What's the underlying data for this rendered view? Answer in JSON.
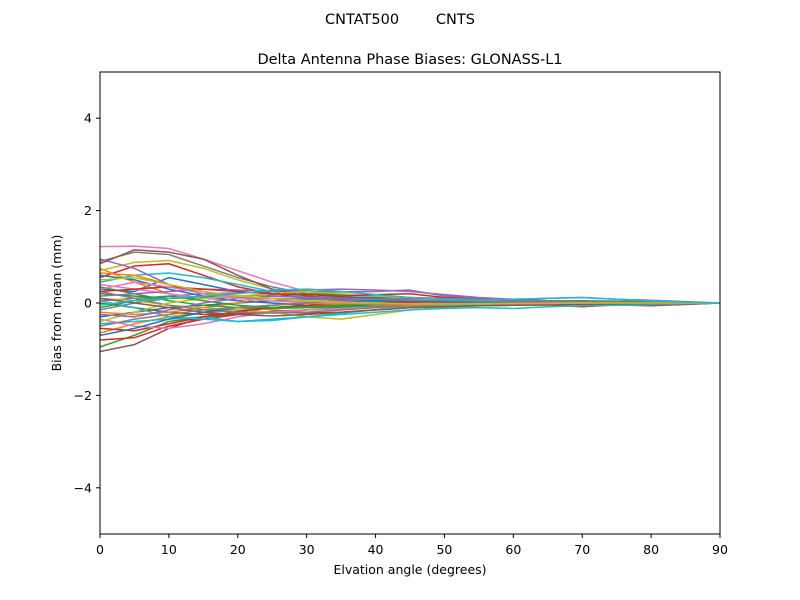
{
  "chart_data": {
    "type": "line",
    "suptitle": "CNTAT500        CNTS",
    "title": "Delta Antenna Phase Biases: GLONASS-L1",
    "xlabel": "Elvation angle (degrees)",
    "ylabel": "Bias from mean (mm)",
    "xlim": [
      0,
      90
    ],
    "ylim": [
      -5,
      5
    ],
    "xticks": [
      0,
      10,
      20,
      30,
      40,
      50,
      60,
      70,
      80,
      90
    ],
    "xtick_labels": [
      "0",
      "10",
      "20",
      "30",
      "40",
      "50",
      "60",
      "70",
      "80",
      "90"
    ],
    "yticks": [
      -4,
      -2,
      0,
      2,
      4
    ],
    "ytick_labels": [
      "−4",
      "−2",
      "0",
      "2",
      "4"
    ],
    "grid": false,
    "x": [
      0,
      5,
      10,
      15,
      20,
      25,
      30,
      35,
      40,
      45,
      50,
      55,
      60,
      65,
      70,
      75,
      80,
      85,
      90
    ],
    "series": [
      {
        "color": "#1f77b4",
        "values": [
          0.3,
          0.25,
          0.55,
          0.4,
          0.25,
          0.2,
          0.15,
          0.1,
          0.1,
          0.08,
          0.05,
          0.05,
          0.03,
          0.03,
          0.02,
          0.02,
          0.01,
          0.01,
          0.0
        ]
      },
      {
        "color": "#ff7f0e",
        "values": [
          0.75,
          0.45,
          0.2,
          0.05,
          -0.05,
          -0.15,
          -0.2,
          -0.15,
          -0.1,
          -0.05,
          -0.05,
          -0.03,
          -0.02,
          -0.02,
          -0.01,
          -0.01,
          0.0,
          0.0,
          0.0
        ]
      },
      {
        "color": "#2ca02c",
        "values": [
          -0.95,
          -0.7,
          -0.4,
          -0.3,
          -0.25,
          -0.2,
          -0.15,
          -0.1,
          -0.05,
          0.0,
          0.02,
          0.03,
          0.04,
          0.05,
          0.05,
          0.04,
          0.03,
          0.02,
          0.0
        ]
      },
      {
        "color": "#d62728",
        "values": [
          0.55,
          0.8,
          0.85,
          0.6,
          0.35,
          0.2,
          0.1,
          0.05,
          0.0,
          -0.02,
          -0.03,
          -0.03,
          -0.02,
          -0.02,
          -0.03,
          -0.02,
          -0.05,
          -0.03,
          0.0
        ]
      },
      {
        "color": "#9467bd",
        "values": [
          0.05,
          0.1,
          0.15,
          0.2,
          0.22,
          0.25,
          0.28,
          0.3,
          0.28,
          0.25,
          0.18,
          0.12,
          0.08,
          0.05,
          0.03,
          0.02,
          0.01,
          0.01,
          0.0
        ]
      },
      {
        "color": "#8c564b",
        "values": [
          -1.05,
          -0.9,
          -0.55,
          -0.3,
          -0.2,
          -0.1,
          -0.05,
          0.0,
          0.02,
          0.03,
          0.03,
          0.02,
          0.02,
          0.01,
          0.01,
          0.01,
          0.0,
          0.0,
          0.0
        ]
      },
      {
        "color": "#e377c2",
        "values": [
          1.22,
          1.23,
          1.18,
          0.95,
          0.7,
          0.45,
          0.25,
          0.15,
          0.1,
          0.08,
          0.05,
          0.04,
          0.03,
          0.02,
          0.02,
          0.01,
          0.01,
          0.0,
          0.0
        ]
      },
      {
        "color": "#7f7f7f",
        "values": [
          0.9,
          1.1,
          1.05,
          0.8,
          0.55,
          0.35,
          0.2,
          0.12,
          0.08,
          0.05,
          0.04,
          0.03,
          0.02,
          0.02,
          0.01,
          0.01,
          0.01,
          0.0,
          0.0
        ]
      },
      {
        "color": "#bcbd22",
        "values": [
          0.7,
          0.88,
          0.92,
          0.75,
          0.5,
          0.3,
          0.15,
          0.05,
          0.0,
          -0.03,
          -0.04,
          -0.03,
          -0.02,
          -0.02,
          -0.01,
          -0.01,
          0.0,
          0.0,
          0.0
        ]
      },
      {
        "color": "#17becf",
        "values": [
          0.45,
          0.6,
          0.65,
          0.55,
          0.4,
          0.25,
          0.12,
          0.05,
          0.02,
          0.0,
          -0.02,
          -0.02,
          -0.02,
          -0.01,
          -0.01,
          -0.01,
          0.0,
          0.0,
          0.0
        ]
      },
      {
        "color": "#1f77b4",
        "values": [
          -0.3,
          -0.2,
          -0.1,
          -0.05,
          0.0,
          0.05,
          0.1,
          0.12,
          0.12,
          0.1,
          0.08,
          0.06,
          0.04,
          0.03,
          0.02,
          0.01,
          0.01,
          0.0,
          0.0
        ]
      },
      {
        "color": "#ff7f0e",
        "values": [
          -0.65,
          -0.45,
          -0.3,
          -0.2,
          -0.15,
          -0.1,
          -0.05,
          -0.03,
          -0.02,
          -0.01,
          0.0,
          0.01,
          0.01,
          0.01,
          0.0,
          0.0,
          0.0,
          0.0,
          0.0
        ]
      },
      {
        "color": "#2ca02c",
        "values": [
          0.2,
          0.15,
          0.1,
          0.12,
          0.15,
          0.18,
          0.2,
          0.18,
          0.15,
          0.12,
          0.1,
          0.08,
          0.06,
          0.05,
          0.04,
          0.03,
          0.02,
          0.01,
          0.0
        ]
      },
      {
        "color": "#d62728",
        "values": [
          -0.8,
          -0.75,
          -0.5,
          -0.35,
          -0.25,
          -0.2,
          -0.22,
          -0.2,
          -0.15,
          -0.1,
          -0.08,
          -0.06,
          -0.05,
          -0.04,
          -0.08,
          -0.04,
          -0.06,
          -0.03,
          0.0
        ]
      },
      {
        "color": "#9467bd",
        "values": [
          0.95,
          0.75,
          0.4,
          0.2,
          0.1,
          0.05,
          0.02,
          0.0,
          -0.02,
          -0.03,
          -0.03,
          -0.02,
          -0.02,
          -0.01,
          -0.01,
          0.0,
          0.0,
          0.0,
          0.0
        ]
      },
      {
        "color": "#8c564b",
        "values": [
          0.0,
          -0.1,
          -0.2,
          -0.25,
          -0.22,
          -0.18,
          -0.15,
          -0.12,
          -0.1,
          -0.08,
          -0.06,
          -0.05,
          -0.04,
          -0.03,
          -0.02,
          -0.02,
          -0.01,
          -0.01,
          0.0
        ]
      },
      {
        "color": "#e377c2",
        "values": [
          0.4,
          0.3,
          0.2,
          0.1,
          0.05,
          0.0,
          -0.05,
          -0.08,
          -0.08,
          -0.06,
          -0.05,
          -0.04,
          -0.03,
          -0.02,
          -0.02,
          -0.01,
          -0.01,
          0.0,
          0.0
        ]
      },
      {
        "color": "#7f7f7f",
        "values": [
          -0.15,
          0.0,
          0.1,
          0.15,
          0.12,
          0.1,
          0.08,
          0.06,
          0.05,
          0.04,
          0.03,
          0.02,
          0.02,
          0.01,
          0.01,
          0.01,
          0.0,
          0.0,
          0.0
        ]
      },
      {
        "color": "#bcbd22",
        "values": [
          0.1,
          0.05,
          -0.05,
          -0.1,
          -0.15,
          -0.2,
          -0.3,
          -0.35,
          -0.25,
          -0.15,
          -0.1,
          -0.06,
          -0.04,
          -0.03,
          -0.02,
          -0.01,
          -0.01,
          0.0,
          0.0
        ]
      },
      {
        "color": "#17becf",
        "values": [
          -0.45,
          -0.4,
          -0.35,
          -0.3,
          -0.4,
          -0.38,
          -0.3,
          -0.25,
          -0.2,
          -0.15,
          -0.12,
          -0.1,
          -0.12,
          -0.08,
          -0.06,
          -0.05,
          -0.04,
          -0.02,
          0.0
        ]
      },
      {
        "color": "#1f77b4",
        "values": [
          0.6,
          0.5,
          0.3,
          0.15,
          0.05,
          0.0,
          -0.05,
          -0.06,
          -0.05,
          -0.04,
          -0.03,
          -0.02,
          -0.02,
          -0.01,
          -0.01,
          0.0,
          0.0,
          0.0,
          0.0
        ]
      },
      {
        "color": "#ff7f0e",
        "values": [
          -0.2,
          -0.25,
          -0.2,
          -0.1,
          0.0,
          0.15,
          0.3,
          0.25,
          0.18,
          0.12,
          0.08,
          0.05,
          0.03,
          0.02,
          0.01,
          0.01,
          0.0,
          0.0,
          0.0
        ]
      },
      {
        "color": "#2ca02c",
        "values": [
          0.35,
          0.2,
          0.05,
          -0.05,
          -0.1,
          -0.12,
          -0.1,
          -0.08,
          -0.06,
          -0.04,
          -0.03,
          -0.02,
          -0.01,
          0.0,
          0.01,
          0.01,
          0.01,
          0.0,
          0.0
        ]
      },
      {
        "color": "#d62728",
        "values": [
          -0.55,
          -0.6,
          -0.45,
          -0.3,
          -0.18,
          -0.1,
          -0.05,
          -0.02,
          0.0,
          0.02,
          0.03,
          0.03,
          0.02,
          0.02,
          0.01,
          0.01,
          0.0,
          0.0,
          0.0
        ]
      },
      {
        "color": "#9467bd",
        "values": [
          0.15,
          0.2,
          0.25,
          0.3,
          0.28,
          0.26,
          0.25,
          0.24,
          0.25,
          0.28,
          0.15,
          0.1,
          0.08,
          0.1,
          0.12,
          0.08,
          0.06,
          0.03,
          0.0
        ]
      },
      {
        "color": "#8c564b",
        "values": [
          0.85,
          1.15,
          1.1,
          0.95,
          0.6,
          0.3,
          0.15,
          0.08,
          0.05,
          0.03,
          0.02,
          0.02,
          0.01,
          0.01,
          0.01,
          0.0,
          0.0,
          0.0,
          0.0
        ]
      },
      {
        "color": "#e377c2",
        "values": [
          -0.35,
          -0.5,
          -0.55,
          -0.45,
          -0.3,
          -0.2,
          -0.15,
          -0.12,
          -0.1,
          -0.08,
          -0.06,
          -0.04,
          -0.03,
          -0.02,
          -0.02,
          -0.01,
          -0.01,
          0.0,
          0.0
        ]
      },
      {
        "color": "#7f7f7f",
        "values": [
          0.25,
          0.1,
          -0.05,
          -0.15,
          -0.2,
          -0.22,
          -0.2,
          -0.15,
          -0.1,
          -0.06,
          -0.04,
          -0.03,
          -0.02,
          -0.01,
          -0.01,
          0.0,
          0.0,
          0.0,
          0.0
        ]
      },
      {
        "color": "#bcbd22",
        "values": [
          -0.4,
          -0.2,
          0.0,
          0.1,
          0.15,
          0.2,
          0.25,
          0.2,
          0.15,
          0.1,
          0.07,
          0.05,
          0.03,
          0.02,
          0.01,
          0.01,
          0.0,
          0.0,
          0.0
        ]
      },
      {
        "color": "#17becf",
        "values": [
          0.05,
          -0.1,
          -0.3,
          -0.35,
          -0.4,
          -0.35,
          -0.3,
          -0.22,
          -0.15,
          -0.1,
          -0.06,
          -0.04,
          -0.03,
          -0.02,
          -0.01,
          -0.01,
          0.0,
          0.0,
          0.0
        ]
      },
      {
        "color": "#1f77b4",
        "values": [
          -0.7,
          -0.55,
          -0.35,
          -0.2,
          -0.1,
          -0.05,
          0.0,
          0.03,
          0.05,
          0.05,
          0.04,
          0.03,
          0.02,
          0.02,
          0.01,
          0.01,
          0.0,
          0.0,
          0.0
        ]
      },
      {
        "color": "#ff7f0e",
        "values": [
          0.65,
          0.6,
          0.4,
          0.25,
          0.12,
          0.05,
          0.0,
          -0.03,
          -0.04,
          -0.04,
          -0.03,
          -0.02,
          -0.02,
          -0.01,
          -0.01,
          0.0,
          0.0,
          0.0,
          0.0
        ]
      },
      {
        "color": "#2ca02c",
        "values": [
          -0.1,
          0.05,
          0.15,
          0.05,
          -0.05,
          -0.1,
          -0.08,
          -0.05,
          -0.03,
          -0.02,
          -0.01,
          0.0,
          0.0,
          0.01,
          0.01,
          0.0,
          0.0,
          0.0,
          0.0
        ]
      },
      {
        "color": "#d62728",
        "values": [
          0.25,
          0.3,
          0.35,
          0.3,
          0.25,
          0.2,
          0.18,
          0.15,
          0.18,
          0.2,
          0.12,
          0.08,
          0.05,
          0.03,
          0.02,
          0.02,
          0.01,
          0.01,
          0.0
        ]
      },
      {
        "color": "#9467bd",
        "values": [
          -0.25,
          -0.3,
          -0.15,
          0.0,
          0.1,
          0.15,
          0.12,
          0.1,
          0.08,
          0.06,
          0.05,
          0.04,
          0.03,
          0.02,
          0.02,
          0.01,
          0.01,
          0.0,
          0.0
        ]
      },
      {
        "color": "#8c564b",
        "values": [
          0.1,
          0.0,
          -0.1,
          -0.2,
          -0.25,
          -0.28,
          -0.25,
          -0.2,
          -0.15,
          -0.1,
          -0.08,
          -0.06,
          -0.05,
          -0.04,
          -0.03,
          -0.02,
          -0.01,
          -0.01,
          0.0
        ]
      },
      {
        "color": "#e377c2",
        "values": [
          0.3,
          0.45,
          0.35,
          0.2,
          0.1,
          0.05,
          0.02,
          0.0,
          -0.02,
          -0.02,
          -0.02,
          -0.01,
          -0.01,
          0.0,
          0.0,
          0.0,
          0.0,
          0.0,
          0.0
        ]
      },
      {
        "color": "#7f7f7f",
        "values": [
          -0.5,
          -0.35,
          -0.25,
          -0.15,
          -0.1,
          -0.05,
          0.0,
          0.05,
          0.08,
          0.1,
          0.1,
          0.08,
          0.06,
          0.05,
          0.04,
          0.03,
          0.02,
          0.01,
          0.0
        ]
      },
      {
        "color": "#bcbd22",
        "values": [
          0.5,
          0.55,
          0.4,
          0.25,
          0.15,
          0.1,
          0.05,
          0.02,
          0.0,
          -0.02,
          -0.02,
          -0.02,
          -0.01,
          -0.01,
          0.0,
          0.0,
          0.0,
          0.0,
          0.0
        ]
      },
      {
        "color": "#17becf",
        "values": [
          -0.05,
          0.05,
          0.1,
          0.15,
          0.2,
          0.28,
          0.3,
          0.25,
          0.18,
          0.12,
          0.08,
          0.06,
          0.08,
          0.1,
          0.12,
          0.08,
          0.05,
          0.02,
          0.0
        ]
      }
    ]
  }
}
